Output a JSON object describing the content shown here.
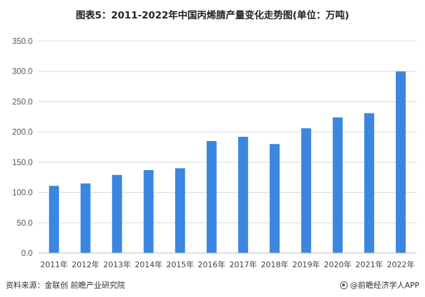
{
  "chart_data": {
    "type": "bar",
    "title": "图表5：2011-2022年中国丙烯腈产量变化走势图(单位：万吨)",
    "categories": [
      "2011年",
      "2012年",
      "2013年",
      "2014年",
      "2015年",
      "2016年",
      "2017年",
      "2018年",
      "2019年",
      "2020年",
      "2021年",
      "2022年"
    ],
    "values": [
      111,
      115,
      129,
      137,
      140,
      185,
      192,
      180,
      206,
      224,
      231,
      300
    ],
    "ylim": [
      0,
      350
    ],
    "yticks": [
      "0.0",
      "50.0",
      "100.0",
      "150.0",
      "200.0",
      "250.0",
      "300.0",
      "350.0"
    ],
    "grid": true,
    "bar_color": "#3a86e0"
  },
  "footer": {
    "source": "资料来源：金联创 前瞻产业研究院",
    "brand": "@前瞻经济学人APP"
  }
}
